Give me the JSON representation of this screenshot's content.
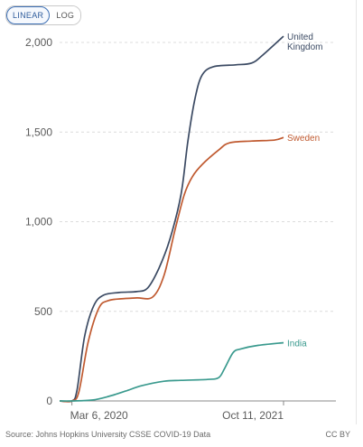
{
  "controls": {
    "linear_label": "LINEAR",
    "log_label": "LOG",
    "selected": "LINEAR"
  },
  "footer": {
    "source": "Source: Johns Hopkins University CSSE COVID-19 Data",
    "license": "CC BY"
  },
  "chart_data": {
    "type": "line",
    "title": "",
    "xlabel": "",
    "ylabel": "",
    "ylim": [
      0,
      2000
    ],
    "yticks": [
      0,
      500,
      1000,
      1500,
      2000
    ],
    "ytick_labels": [
      "0",
      "500",
      "1,000",
      "1,500",
      "2,000"
    ],
    "xlim": [
      "2020-02-01",
      "2021-10-11"
    ],
    "xtick_labels": [
      "Mar 6, 2020",
      "Oct 11, 2021"
    ],
    "grid": "horizontal dashed",
    "series": [
      {
        "name": "United Kingdom",
        "label_lines": [
          "United",
          "Kingdom"
        ],
        "color": "#3b4a63",
        "points": [
          [
            "2020-02-01",
            0
          ],
          [
            "2020-03-06",
            0
          ],
          [
            "2020-03-20",
            60
          ],
          [
            "2020-04-10",
            360
          ],
          [
            "2020-05-05",
            530
          ],
          [
            "2020-06-01",
            590
          ],
          [
            "2020-07-15",
            605
          ],
          [
            "2020-09-01",
            610
          ],
          [
            "2020-10-01",
            630
          ],
          [
            "2020-11-01",
            740
          ],
          [
            "2020-12-01",
            900
          ],
          [
            "2021-01-01",
            1150
          ],
          [
            "2021-01-20",
            1450
          ],
          [
            "2021-02-10",
            1700
          ],
          [
            "2021-03-01",
            1820
          ],
          [
            "2021-04-01",
            1865
          ],
          [
            "2021-06-01",
            1875
          ],
          [
            "2021-07-15",
            1885
          ],
          [
            "2021-08-15",
            1930
          ],
          [
            "2021-10-11",
            2035
          ]
        ]
      },
      {
        "name": "Sweden",
        "label_lines": [
          "Sweden"
        ],
        "color": "#c05a30",
        "points": [
          [
            "2020-02-01",
            0
          ],
          [
            "2020-03-06",
            0
          ],
          [
            "2020-03-25",
            50
          ],
          [
            "2020-04-20",
            330
          ],
          [
            "2020-05-20",
            520
          ],
          [
            "2020-06-15",
            560
          ],
          [
            "2020-07-20",
            570
          ],
          [
            "2020-09-01",
            575
          ],
          [
            "2020-10-15",
            580
          ],
          [
            "2020-11-15",
            700
          ],
          [
            "2020-12-15",
            950
          ],
          [
            "2021-01-10",
            1150
          ],
          [
            "2021-02-01",
            1250
          ],
          [
            "2021-03-01",
            1320
          ],
          [
            "2021-04-15",
            1400
          ],
          [
            "2021-05-15",
            1440
          ],
          [
            "2021-07-15",
            1450
          ],
          [
            "2021-09-15",
            1455
          ],
          [
            "2021-10-11",
            1470
          ]
        ]
      },
      {
        "name": "India",
        "label_lines": [
          "India"
        ],
        "color": "#3a9a8e",
        "points": [
          [
            "2020-02-01",
            0
          ],
          [
            "2020-03-06",
            0
          ],
          [
            "2020-05-01",
            5
          ],
          [
            "2020-06-15",
            25
          ],
          [
            "2020-08-01",
            55
          ],
          [
            "2020-09-15",
            85
          ],
          [
            "2020-11-15",
            110
          ],
          [
            "2021-01-01",
            115
          ],
          [
            "2021-03-15",
            120
          ],
          [
            "2021-04-15",
            130
          ],
          [
            "2021-05-01",
            180
          ],
          [
            "2021-05-25",
            270
          ],
          [
            "2021-06-15",
            290
          ],
          [
            "2021-08-01",
            310
          ],
          [
            "2021-10-11",
            325
          ]
        ]
      }
    ]
  }
}
